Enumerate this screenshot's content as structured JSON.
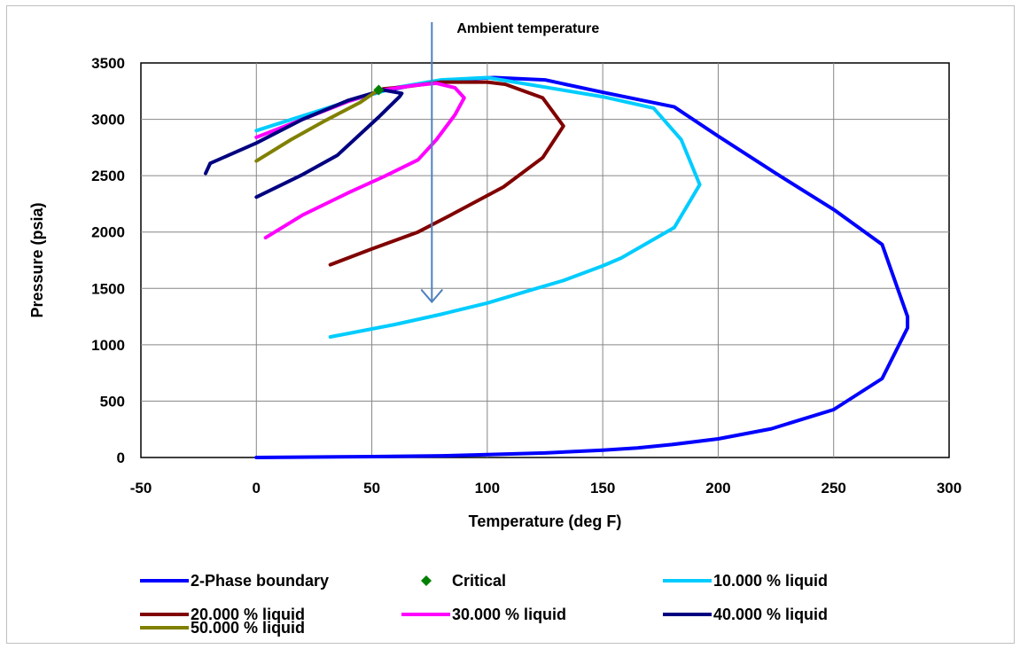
{
  "chart_data": {
    "type": "line",
    "title": "",
    "xlabel": "Temperature (deg F)",
    "ylabel": "Pressure (psia)",
    "xlim": [
      -50,
      300
    ],
    "ylim": [
      0,
      3500
    ],
    "x_ticks": [
      "-50",
      "0",
      "50",
      "100",
      "150",
      "200",
      "250",
      "300"
    ],
    "y_ticks": [
      "0",
      "500",
      "1000",
      "1500",
      "2000",
      "2500",
      "3000",
      "3500"
    ],
    "grid": true,
    "legend_position": "bottom",
    "annotation": {
      "text": "Ambient temperature",
      "x": 76,
      "y_from": 3850,
      "y_to": 1380
    },
    "series": [
      {
        "name": "2-Phase boundary",
        "color": "#0000ff",
        "marker": "none",
        "points": [
          [
            0,
            0
          ],
          [
            50,
            8
          ],
          [
            80,
            15
          ],
          [
            100,
            25
          ],
          [
            125,
            40
          ],
          [
            150,
            65
          ],
          [
            165,
            85
          ],
          [
            180,
            115
          ],
          [
            200,
            165
          ],
          [
            223,
            255
          ],
          [
            250,
            425
          ],
          [
            271,
            700
          ],
          [
            282,
            1150
          ],
          [
            282,
            1250
          ],
          [
            271,
            1890
          ],
          [
            250,
            2200
          ],
          [
            225,
            2520
          ],
          [
            200,
            2850
          ],
          [
            181,
            3110
          ],
          [
            150,
            3240
          ],
          [
            125,
            3350
          ],
          [
            103,
            3370
          ],
          [
            93,
            3360
          ],
          [
            75,
            3330
          ],
          [
            60,
            3270
          ],
          [
            52,
            3260
          ]
        ]
      },
      {
        "name": "Critical",
        "color": "#008000",
        "marker": "diamond",
        "points": [
          [
            53,
            3260
          ]
        ]
      },
      {
        "name": "10.000 % liquid",
        "color": "#00ccff",
        "marker": "none",
        "points": [
          [
            32,
            1070
          ],
          [
            60,
            1180
          ],
          [
            80,
            1270
          ],
          [
            100,
            1370
          ],
          [
            118,
            1480
          ],
          [
            133,
            1570
          ],
          [
            150,
            1700
          ],
          [
            158,
            1770
          ],
          [
            181,
            2040
          ],
          [
            192,
            2420
          ],
          [
            184,
            2820
          ],
          [
            172,
            3100
          ],
          [
            150,
            3200
          ],
          [
            100,
            3370
          ],
          [
            80,
            3350
          ],
          [
            60,
            3280
          ],
          [
            40,
            3160
          ],
          [
            20,
            3030
          ],
          [
            0,
            2900
          ]
        ]
      },
      {
        "name": "20.000 % liquid",
        "color": "#800000",
        "marker": "none",
        "points": [
          [
            32,
            1710
          ],
          [
            50,
            1850
          ],
          [
            70,
            2000
          ],
          [
            85,
            2160
          ],
          [
            107,
            2400
          ],
          [
            124,
            2660
          ],
          [
            133,
            2940
          ],
          [
            124,
            3190
          ],
          [
            108,
            3310
          ],
          [
            100,
            3330
          ],
          [
            80,
            3330
          ],
          [
            65,
            3290
          ],
          [
            55,
            3270
          ]
        ]
      },
      {
        "name": "30.000 % liquid",
        "color": "#ff00ff",
        "marker": "none",
        "points": [
          [
            4,
            1950
          ],
          [
            20,
            2150
          ],
          [
            40,
            2350
          ],
          [
            55,
            2490
          ],
          [
            70,
            2640
          ],
          [
            78,
            2820
          ],
          [
            86,
            3040
          ],
          [
            90,
            3190
          ],
          [
            86,
            3280
          ],
          [
            78,
            3320
          ],
          [
            68,
            3300
          ],
          [
            55,
            3260
          ],
          [
            40,
            3160
          ],
          [
            20,
            3000
          ],
          [
            0,
            2840
          ]
        ]
      },
      {
        "name": "40.000 % liquid",
        "color": "#000080",
        "marker": "none",
        "points": [
          [
            0,
            2310
          ],
          [
            20,
            2510
          ],
          [
            35,
            2680
          ],
          [
            53,
            3020
          ],
          [
            62,
            3200
          ],
          [
            63,
            3230
          ],
          [
            55,
            3260
          ],
          [
            40,
            3170
          ],
          [
            20,
            3000
          ],
          [
            0,
            2790
          ],
          [
            -20,
            2610
          ],
          [
            -22,
            2520
          ]
        ]
      },
      {
        "name": "50.000 % liquid",
        "color": "#808000",
        "marker": "none",
        "points": [
          [
            0,
            2630
          ],
          [
            15,
            2820
          ],
          [
            30,
            2990
          ],
          [
            45,
            3150
          ],
          [
            52,
            3250
          ]
        ]
      }
    ]
  }
}
